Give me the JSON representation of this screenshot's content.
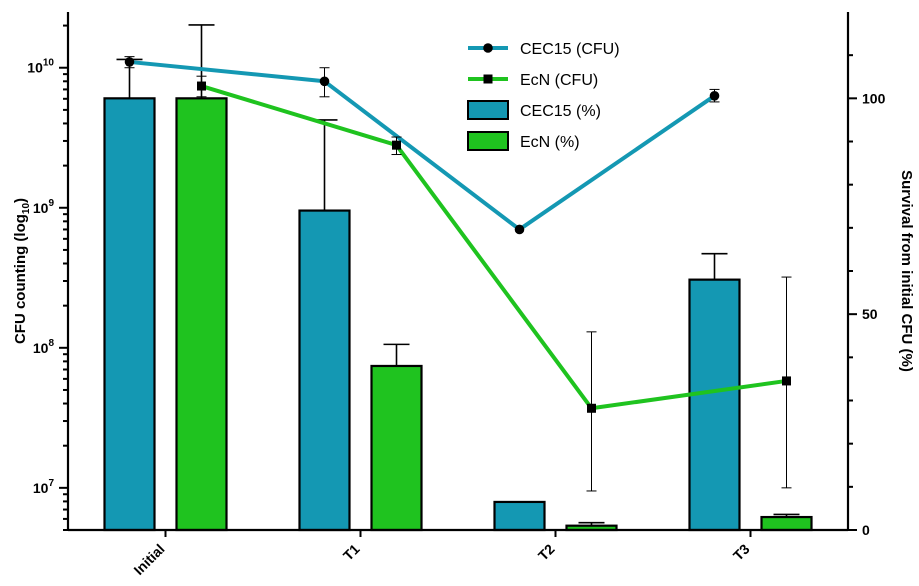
{
  "chart_data": {
    "type": "bar",
    "categories": [
      "Initial",
      "T1",
      "T2",
      "T3"
    ],
    "y_left": {
      "label": "CFU counting (log",
      "label_sub": "10",
      "label_end": ")",
      "scale": "log",
      "range": [
        5000000,
        25000000000
      ],
      "ticks": [
        {
          "value": 10000000,
          "base": "10",
          "exp": "7"
        },
        {
          "value": 100000000,
          "base": "10",
          "exp": "8"
        },
        {
          "value": 1000000000,
          "base": "10",
          "exp": "9"
        },
        {
          "value": 10000000000,
          "base": "10",
          "exp": "10"
        }
      ]
    },
    "y_right": {
      "label": "Survival from initial CFU (%)",
      "scale": "linear",
      "range": [
        0,
        120
      ],
      "ticks": [
        0,
        50,
        100
      ]
    },
    "bar_series": [
      {
        "name": "CEC15 (%)",
        "axis": "right",
        "color": "#1498b3",
        "values": [
          100,
          74,
          6.5,
          58
        ],
        "err_upper": [
          9,
          21,
          null,
          6
        ]
      },
      {
        "name": "EcN (%)",
        "axis": "right",
        "color": "#1fc31f",
        "values": [
          100,
          38,
          1,
          3
        ],
        "err_upper": [
          17,
          5,
          0.7,
          0.6
        ]
      }
    ],
    "line_series": [
      {
        "name": "CEC15 (CFU)",
        "axis": "left",
        "color": "#1498b3",
        "marker": "circle",
        "values": [
          11000000000,
          8000000000,
          700000000,
          6300000000
        ],
        "err_upper": [
          12000000000,
          10000000000,
          null,
          7000000000
        ],
        "err_lower": [
          10000000000,
          6200000000,
          null,
          5700000000
        ]
      },
      {
        "name": "EcN (CFU)",
        "axis": "left",
        "color": "#1fc31f",
        "marker": "square",
        "values": [
          7400000000,
          2800000000,
          37000000,
          58000000
        ],
        "err_upper": [
          8700000000,
          3200000000,
          130000000,
          320000000
        ],
        "err_lower": [
          6200000000,
          2400000000,
          9500000,
          10000000
        ]
      }
    ],
    "legend": {
      "position": "top-center",
      "items": [
        {
          "label": "CEC15 (CFU)",
          "kind": "line",
          "marker": "circle",
          "color": "#1498b3"
        },
        {
          "label": "EcN (CFU)",
          "kind": "line",
          "marker": "square",
          "color": "#1fc31f"
        },
        {
          "label": "CEC15 (%)",
          "kind": "bar",
          "color": "#1498b3"
        },
        {
          "label": "EcN (%)",
          "kind": "bar",
          "color": "#1fc31f"
        }
      ]
    },
    "grid": false
  }
}
